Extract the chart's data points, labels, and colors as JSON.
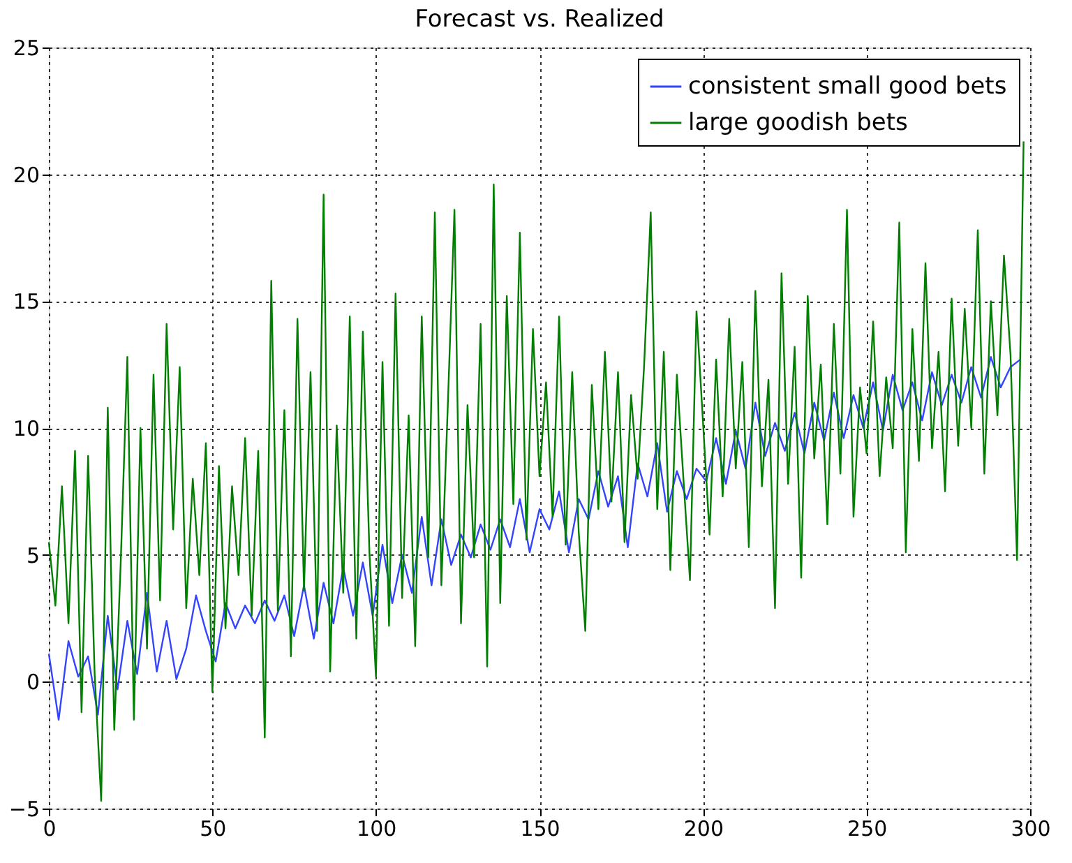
{
  "chart_data": {
    "type": "line",
    "title": "Forecast vs. Realized",
    "xlim": [
      0,
      300
    ],
    "xticks": [
      0,
      50,
      100,
      150,
      200,
      250,
      300
    ],
    "ylim": [
      -5,
      25
    ],
    "yticks": [
      -5,
      0,
      5,
      10,
      15,
      20,
      25
    ],
    "grid": true,
    "legend": "top right",
    "marker": "none",
    "line_style": "solid",
    "series": [
      {
        "name": "consistent small good bets",
        "color": "#3344ff",
        "x": [
          0,
          3,
          6,
          9,
          12,
          15,
          18,
          21,
          24,
          27,
          30,
          33,
          36,
          39,
          42,
          45,
          48,
          51,
          54,
          57,
          60,
          63,
          66,
          69,
          72,
          75,
          78,
          81,
          84,
          87,
          90,
          93,
          96,
          99,
          102,
          105,
          108,
          111,
          114,
          117,
          120,
          123,
          126,
          129,
          132,
          135,
          138,
          141,
          144,
          147,
          150,
          153,
          156,
          159,
          162,
          165,
          168,
          171,
          174,
          177,
          180,
          183,
          186,
          189,
          192,
          195,
          198,
          201,
          204,
          207,
          210,
          213,
          216,
          219,
          222,
          225,
          228,
          231,
          234,
          237,
          240,
          243,
          246,
          249,
          252,
          255,
          258,
          261,
          264,
          267,
          270,
          273,
          276,
          279,
          282,
          285,
          288,
          291,
          294,
          297
        ],
        "values": [
          1.1,
          -1.5,
          1.6,
          0.2,
          1.0,
          -1.3,
          2.6,
          -0.3,
          2.4,
          0.3,
          3.5,
          0.4,
          2.4,
          0.1,
          1.3,
          3.4,
          2.0,
          0.8,
          3.1,
          2.1,
          3.0,
          2.3,
          3.2,
          2.4,
          3.4,
          1.8,
          3.8,
          1.7,
          3.9,
          2.3,
          4.5,
          2.6,
          4.7,
          2.6,
          5.4,
          3.1,
          5.0,
          3.5,
          6.5,
          3.8,
          6.4,
          4.6,
          5.8,
          4.9,
          6.2,
          5.2,
          6.4,
          5.3,
          7.2,
          5.1,
          6.8,
          6.0,
          7.5,
          5.1,
          7.2,
          6.4,
          8.3,
          6.9,
          8.1,
          5.3,
          8.6,
          7.3,
          9.4,
          6.7,
          8.3,
          7.2,
          8.4,
          7.9,
          9.6,
          7.8,
          9.9,
          8.4,
          11.0,
          8.9,
          10.2,
          9.1,
          10.6,
          9.0,
          11.0,
          9.5,
          11.4,
          9.6,
          11.3,
          10.0,
          11.8,
          9.9,
          12.1,
          10.7,
          11.8,
          10.3,
          12.2,
          10.9,
          12.1,
          11.0,
          12.4,
          11.2,
          12.8,
          11.6,
          12.4,
          12.7
        ]
      },
      {
        "name": "large goodish bets",
        "color": "#007f00",
        "x": [
          0,
          2,
          4,
          6,
          8,
          10,
          12,
          14,
          16,
          18,
          20,
          22,
          24,
          26,
          28,
          30,
          32,
          34,
          36,
          38,
          40,
          42,
          44,
          46,
          48,
          50,
          52,
          54,
          56,
          58,
          60,
          62,
          64,
          66,
          68,
          70,
          72,
          74,
          76,
          78,
          80,
          82,
          84,
          86,
          88,
          90,
          92,
          94,
          96,
          98,
          100,
          102,
          104,
          106,
          108,
          110,
          112,
          114,
          116,
          118,
          120,
          122,
          124,
          126,
          128,
          130,
          132,
          134,
          136,
          138,
          140,
          142,
          144,
          146,
          148,
          150,
          152,
          154,
          156,
          158,
          160,
          162,
          164,
          166,
          168,
          170,
          172,
          174,
          176,
          178,
          180,
          182,
          184,
          186,
          188,
          190,
          192,
          194,
          196,
          198,
          200,
          202,
          204,
          206,
          208,
          210,
          212,
          214,
          216,
          218,
          220,
          222,
          224,
          226,
          228,
          230,
          232,
          234,
          236,
          238,
          240,
          242,
          244,
          246,
          248,
          250,
          252,
          254,
          256,
          258,
          260,
          262,
          264,
          266,
          268,
          270,
          272,
          274,
          276,
          278,
          280,
          282,
          284,
          286,
          288,
          290,
          292,
          294,
          296,
          298
        ],
        "values": [
          5.5,
          3.0,
          7.7,
          2.3,
          9.1,
          -1.2,
          8.9,
          0.3,
          -4.7,
          10.8,
          -1.9,
          4.8,
          12.8,
          -1.5,
          10.0,
          1.3,
          12.1,
          3.2,
          14.1,
          6.0,
          12.4,
          2.9,
          8.0,
          4.2,
          9.4,
          -0.4,
          8.5,
          2.1,
          7.7,
          4.2,
          9.6,
          2.6,
          9.1,
          -2.2,
          15.8,
          2.8,
          10.7,
          1.0,
          14.3,
          3.6,
          12.2,
          2.0,
          19.2,
          0.4,
          10.1,
          3.5,
          14.4,
          1.7,
          13.8,
          5.1,
          0.2,
          12.6,
          2.2,
          15.3,
          3.3,
          10.5,
          1.4,
          14.4,
          4.9,
          18.5,
          3.8,
          11.0,
          18.6,
          2.3,
          10.9,
          4.9,
          14.1,
          0.6,
          19.6,
          3.1,
          15.2,
          7.0,
          17.7,
          5.6,
          13.9,
          8.1,
          11.8,
          6.5,
          14.4,
          5.4,
          12.2,
          5.9,
          2.0,
          11.7,
          6.8,
          13.0,
          7.1,
          12.2,
          5.5,
          11.3,
          8.0,
          12.5,
          18.5,
          6.8,
          13.0,
          4.4,
          12.1,
          8.0,
          4.0,
          14.6,
          10.2,
          5.8,
          12.7,
          7.3,
          14.3,
          8.4,
          12.6,
          5.3,
          15.4,
          7.7,
          11.9,
          2.9,
          16.1,
          7.8,
          13.2,
          4.1,
          15.2,
          8.8,
          12.5,
          6.2,
          14.1,
          8.2,
          18.6,
          6.5,
          11.6,
          9.0,
          14.2,
          8.1,
          12.0,
          9.2,
          18.1,
          5.1,
          13.9,
          8.7,
          16.5,
          9.2,
          13.0,
          7.5,
          15.1,
          9.3,
          14.7,
          10.0,
          17.8,
          8.2,
          15.0,
          10.5,
          16.8,
          12.9,
          4.8,
          21.3
        ]
      }
    ]
  }
}
